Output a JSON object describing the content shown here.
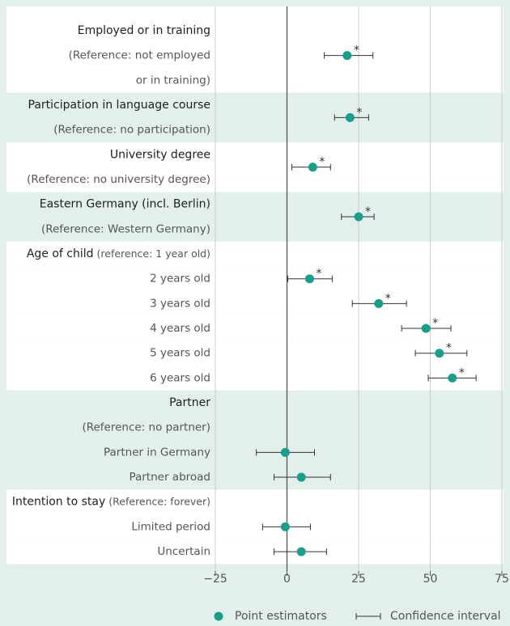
{
  "chart_data": {
    "type": "dot",
    "color": "#1a9e8c",
    "significance_mark": "*",
    "xlim": [
      -25,
      75
    ],
    "xticks": [
      {
        "value": -25,
        "label": "−25"
      },
      0,
      25,
      50,
      75
    ],
    "grid": true,
    "legend": {
      "point": "Point estimators",
      "interval": "Confidence interval"
    },
    "groups": [
      {
        "heading": "Employed or in training",
        "lines": [
          "(Reference: not employed",
          "or in training)"
        ],
        "value": 21,
        "ci_low": 13,
        "ci_high": 30,
        "significant": true,
        "shaded": false
      },
      {
        "heading": "Participation in language course",
        "lines": [
          "(Reference: no participation)"
        ],
        "value": 22,
        "ci_low": 16.6,
        "ci_high": 28.5,
        "significant": true,
        "shaded": true
      },
      {
        "heading": "University degree",
        "lines": [
          "(Reference: no university degree)"
        ],
        "value": 9,
        "ci_low": 1.7,
        "ci_high": 15.2,
        "significant": true,
        "shaded": false
      },
      {
        "heading": "Eastern Germany (incl. Berlin)",
        "lines": [
          "(Reference: Western Germany)"
        ],
        "value": 25,
        "ci_low": 19,
        "ci_high": 30.4,
        "significant": true,
        "shaded": true
      },
      {
        "heading": "Age of child",
        "heading_note": "(reference: 1 year old)",
        "lines": [],
        "shaded": false
      },
      {
        "lines": [
          "2 years old"
        ],
        "value": 7.9,
        "ci_low": 0.3,
        "ci_high": 15.8,
        "significant": true,
        "shaded": false
      },
      {
        "lines": [
          "3 years old"
        ],
        "value": 32,
        "ci_low": 22.8,
        "ci_high": 41.7,
        "significant": true,
        "shaded": false
      },
      {
        "lines": [
          "4 years old"
        ],
        "value": 48.5,
        "ci_low": 40,
        "ci_high": 57.2,
        "significant": true,
        "shaded": false
      },
      {
        "lines": [
          "5 years old"
        ],
        "value": 53.2,
        "ci_low": 44.8,
        "ci_high": 62.8,
        "significant": true,
        "shaded": false
      },
      {
        "lines": [
          "6 years old"
        ],
        "value": 57.7,
        "ci_low": 49.3,
        "ci_high": 66,
        "significant": true,
        "shaded": false
      },
      {
        "heading": "Partner",
        "lines": [
          "(Reference: no partner)"
        ],
        "shaded": true
      },
      {
        "lines": [
          "Partner in Germany"
        ],
        "value": -0.6,
        "ci_low": -10.7,
        "ci_high": 9.6,
        "significant": false,
        "shaded": true
      },
      {
        "lines": [
          "Partner abroad"
        ],
        "value": 5,
        "ci_low": -4.5,
        "ci_high": 15.2,
        "significant": false,
        "shaded": true
      },
      {
        "heading": "Intention to stay",
        "heading_note": "(Reference: forever)",
        "lines": [],
        "shaded": false
      },
      {
        "lines": [
          "Limited period"
        ],
        "value": -0.6,
        "ci_low": -8.5,
        "ci_high": 8.2,
        "significant": false,
        "shaded": false
      },
      {
        "lines": [
          "Uncertain"
        ],
        "value": 5,
        "ci_low": -4.5,
        "ci_high": 13.8,
        "significant": false,
        "shaded": false
      }
    ]
  }
}
